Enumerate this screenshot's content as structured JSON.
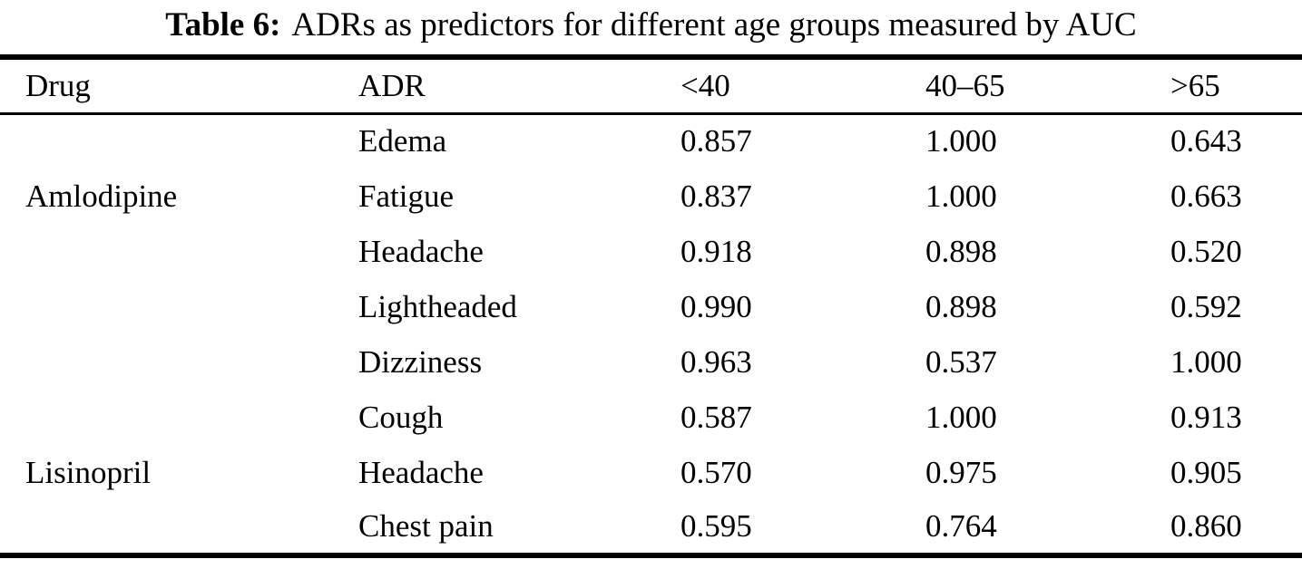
{
  "table": {
    "title_label": "Table 6:",
    "title_text": "ADRs as predictors for different age groups measured by AUC",
    "columns": {
      "drug": "Drug",
      "adr": "ADR",
      "age1": "<40",
      "age2": "40–65",
      "age3": ">65"
    },
    "rows": [
      {
        "drug": "",
        "adr": "Edema",
        "age1": "0.857",
        "age2": "1.000",
        "age3": "0.643"
      },
      {
        "drug": "Amlodipine",
        "adr": "Fatigue",
        "age1": "0.837",
        "age2": "1.000",
        "age3": "0.663"
      },
      {
        "drug": "",
        "adr": "Headache",
        "age1": "0.918",
        "age2": "0.898",
        "age3": "0.520"
      },
      {
        "drug": "",
        "adr": "Lightheaded",
        "age1": "0.990",
        "age2": "0.898",
        "age3": "0.592"
      },
      {
        "drug": "",
        "adr": "Dizziness",
        "age1": "0.963",
        "age2": "0.537",
        "age3": "1.000"
      },
      {
        "drug": "",
        "adr": "Cough",
        "age1": "0.587",
        "age2": "1.000",
        "age3": "0.913"
      },
      {
        "drug": "Lisinopril",
        "adr": "Headache",
        "age1": "0.570",
        "age2": "0.975",
        "age3": "0.905"
      },
      {
        "drug": "",
        "adr": "Chest pain",
        "age1": "0.595",
        "age2": "0.764",
        "age3": "0.860"
      }
    ]
  },
  "chart_data": {
    "type": "table",
    "title": "Table 6: ADRs as predictors for different age groups measured by AUC",
    "columns": [
      "Drug",
      "ADR",
      "<40",
      "40–65",
      ">65"
    ],
    "groups": [
      {
        "drug": "Amlodipine",
        "entries": [
          {
            "adr": "Edema",
            "auc_lt40": 0.857,
            "auc_40_65": 1.0,
            "auc_gt65": 0.643
          },
          {
            "adr": "Fatigue",
            "auc_lt40": 0.837,
            "auc_40_65": 1.0,
            "auc_gt65": 0.663
          },
          {
            "adr": "Headache",
            "auc_lt40": 0.918,
            "auc_40_65": 0.898,
            "auc_gt65": 0.52
          },
          {
            "adr": "Lightheaded",
            "auc_lt40": 0.99,
            "auc_40_65": 0.898,
            "auc_gt65": 0.592
          },
          {
            "adr": "Dizziness",
            "auc_lt40": 0.963,
            "auc_40_65": 0.537,
            "auc_gt65": 1.0
          }
        ]
      },
      {
        "drug": "Lisinopril",
        "entries": [
          {
            "adr": "Cough",
            "auc_lt40": 0.587,
            "auc_40_65": 1.0,
            "auc_gt65": 0.913
          },
          {
            "adr": "Headache",
            "auc_lt40": 0.57,
            "auc_40_65": 0.975,
            "auc_gt65": 0.905
          },
          {
            "adr": "Chest pain",
            "auc_lt40": 0.595,
            "auc_40_65": 0.764,
            "auc_gt65": 0.86
          }
        ]
      }
    ]
  }
}
